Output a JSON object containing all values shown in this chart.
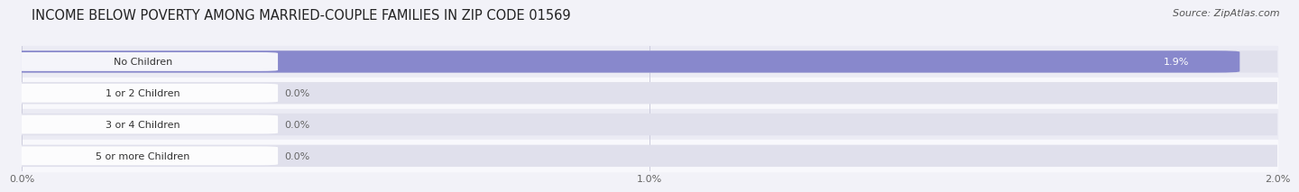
{
  "title": "INCOME BELOW POVERTY AMONG MARRIED-COUPLE FAMILIES IN ZIP CODE 01569",
  "source": "Source: ZipAtlas.com",
  "categories": [
    "No Children",
    "1 or 2 Children",
    "3 or 4 Children",
    "5 or more Children"
  ],
  "values": [
    1.9,
    0.0,
    0.0,
    0.0
  ],
  "bar_colors": [
    "#8888cc",
    "#f090a0",
    "#f0b878",
    "#f09090"
  ],
  "xlim": [
    0,
    2.0
  ],
  "xticks": [
    0.0,
    1.0,
    2.0
  ],
  "xtick_labels": [
    "0.0%",
    "1.0%",
    "2.0%"
  ],
  "bg_color": "#f2f2f8",
  "row_bg_even": "#ebebf4",
  "row_bg_odd": "#f8f8fc",
  "bar_track_color": "#e0e0ec",
  "title_fontsize": 10.5,
  "source_fontsize": 8,
  "label_fontsize": 8,
  "value_fontsize": 8,
  "tick_fontsize": 8
}
